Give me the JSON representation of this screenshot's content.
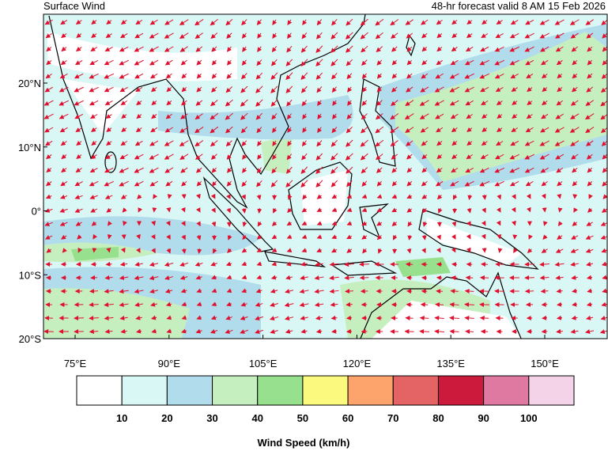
{
  "header": {
    "title": "Surface Wind",
    "subtitle": "48-hr forecast valid 8 AM 15 Feb 2026"
  },
  "map": {
    "lat_labels": [
      "20°N",
      "10°N",
      "0°",
      "10°S",
      "20°S"
    ],
    "lon_labels": [
      "75°E",
      "90°E",
      "105°E",
      "120°E",
      "135°E",
      "150°E"
    ]
  },
  "colorbar": {
    "colors": [
      "#ffffff",
      "#d8f7f5",
      "#b0dcec",
      "#c6efc0",
      "#97e08d",
      "#fbfa7f",
      "#fda46c",
      "#e46466",
      "#cc1a3c",
      "#e079a1",
      "#f4d3e9"
    ],
    "labels": [
      10,
      20,
      30,
      40,
      50,
      60,
      70,
      80,
      90,
      100
    ],
    "title": "Wind Speed (km/h)"
  }
}
